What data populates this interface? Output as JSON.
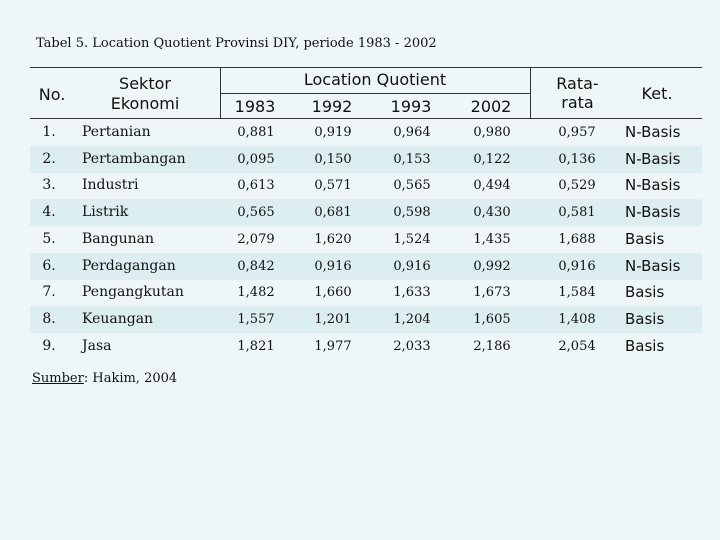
{
  "caption": "Tabel 5. Location Quotient Provinsi DIY, periode 1983 - 2002",
  "header": {
    "no": "No.",
    "sektor_line1": "Sektor",
    "sektor_line2": "Ekonomi",
    "lq": "Location Quotient",
    "years": [
      "1983",
      "1992",
      "1993",
      "2002"
    ],
    "rata_line1": "Rata-",
    "rata_line2": "rata",
    "ket": "Ket."
  },
  "rows": [
    {
      "no": "1.",
      "sektor": "Pertanian",
      "v1983": "0,881",
      "v1992": "0,919",
      "v1993": "0,964",
      "v2002": "0,980",
      "rata": "0,957",
      "ket": "N-Basis"
    },
    {
      "no": "2.",
      "sektor": "Pertambangan",
      "v1983": "0,095",
      "v1992": "0,150",
      "v1993": "0,153",
      "v2002": "0,122",
      "rata": "0,136",
      "ket": "N-Basis"
    },
    {
      "no": "3.",
      "sektor": "Industri",
      "v1983": "0,613",
      "v1992": "0,571",
      "v1993": "0,565",
      "v2002": "0,494",
      "rata": "0,529",
      "ket": "N-Basis"
    },
    {
      "no": "4.",
      "sektor": "Listrik",
      "v1983": "0,565",
      "v1992": "0,681",
      "v1993": "0,598",
      "v2002": "0,430",
      "rata": "0,581",
      "ket": "N-Basis"
    },
    {
      "no": "5.",
      "sektor": "Bangunan",
      "v1983": "2,079",
      "v1992": "1,620",
      "v1993": "1,524",
      "v2002": "1,435",
      "rata": "1,688",
      "ket": "Basis"
    },
    {
      "no": "6.",
      "sektor": "Perdagangan",
      "v1983": "0,842",
      "v1992": "0,916",
      "v1993": "0,916",
      "v2002": "0,992",
      "rata": "0,916",
      "ket": "N-Basis"
    },
    {
      "no": "7.",
      "sektor": "Pengangkutan",
      "v1983": "1,482",
      "v1992": "1,660",
      "v1993": "1,633",
      "v2002": "1,673",
      "rata": "1,584",
      "ket": "Basis"
    },
    {
      "no": "8.",
      "sektor": "Keuangan",
      "v1983": "1,557",
      "v1992": "1,201",
      "v1993": "1,204",
      "v2002": "1,605",
      "rata": "1,408",
      "ket": "Basis"
    },
    {
      "no": "9.",
      "sektor": "Jasa",
      "v1983": "1,821",
      "v1992": "1,977",
      "v1993": "2,033",
      "v2002": "2,186",
      "rata": "2,054",
      "ket": "Basis"
    }
  ],
  "source": {
    "label": "Sumber",
    "text": ": Hakim, 2004"
  }
}
